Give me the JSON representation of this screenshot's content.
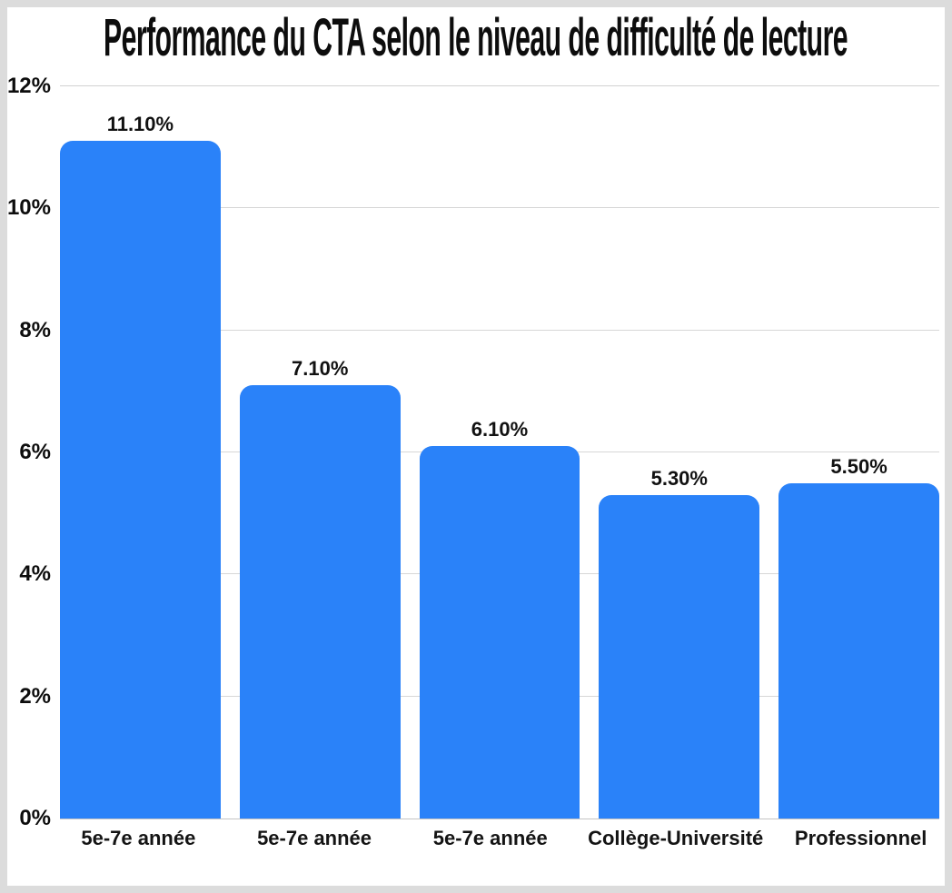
{
  "chart_data": {
    "type": "bar",
    "title": "Performance du CTA selon le niveau de difficulté de lecture",
    "categories": [
      "5e-7e année",
      "5e-7e année",
      "5e-7e année",
      "Collège-Université",
      "Professionnel"
    ],
    "values": [
      11.1,
      7.1,
      6.1,
      5.3,
      5.5
    ],
    "value_labels": [
      "11.10%",
      "7.10%",
      "6.10%",
      "5.30%",
      "5.50%"
    ],
    "xlabel": "",
    "ylabel": "",
    "ylim": [
      0,
      12
    ],
    "ytick_interval": 2,
    "ytick_labels": [
      "0%",
      "2%",
      "4%",
      "6%",
      "8%",
      "10%",
      "12%"
    ],
    "grid": true,
    "legend_position": "none",
    "colors": {
      "bar": "#2A82F9",
      "grid": "#D7D7D7",
      "baseline": "#C4C4C4",
      "text": "#0D0D0D",
      "background": "#FFFFFF",
      "frame_border": "#DCDCDC"
    }
  }
}
